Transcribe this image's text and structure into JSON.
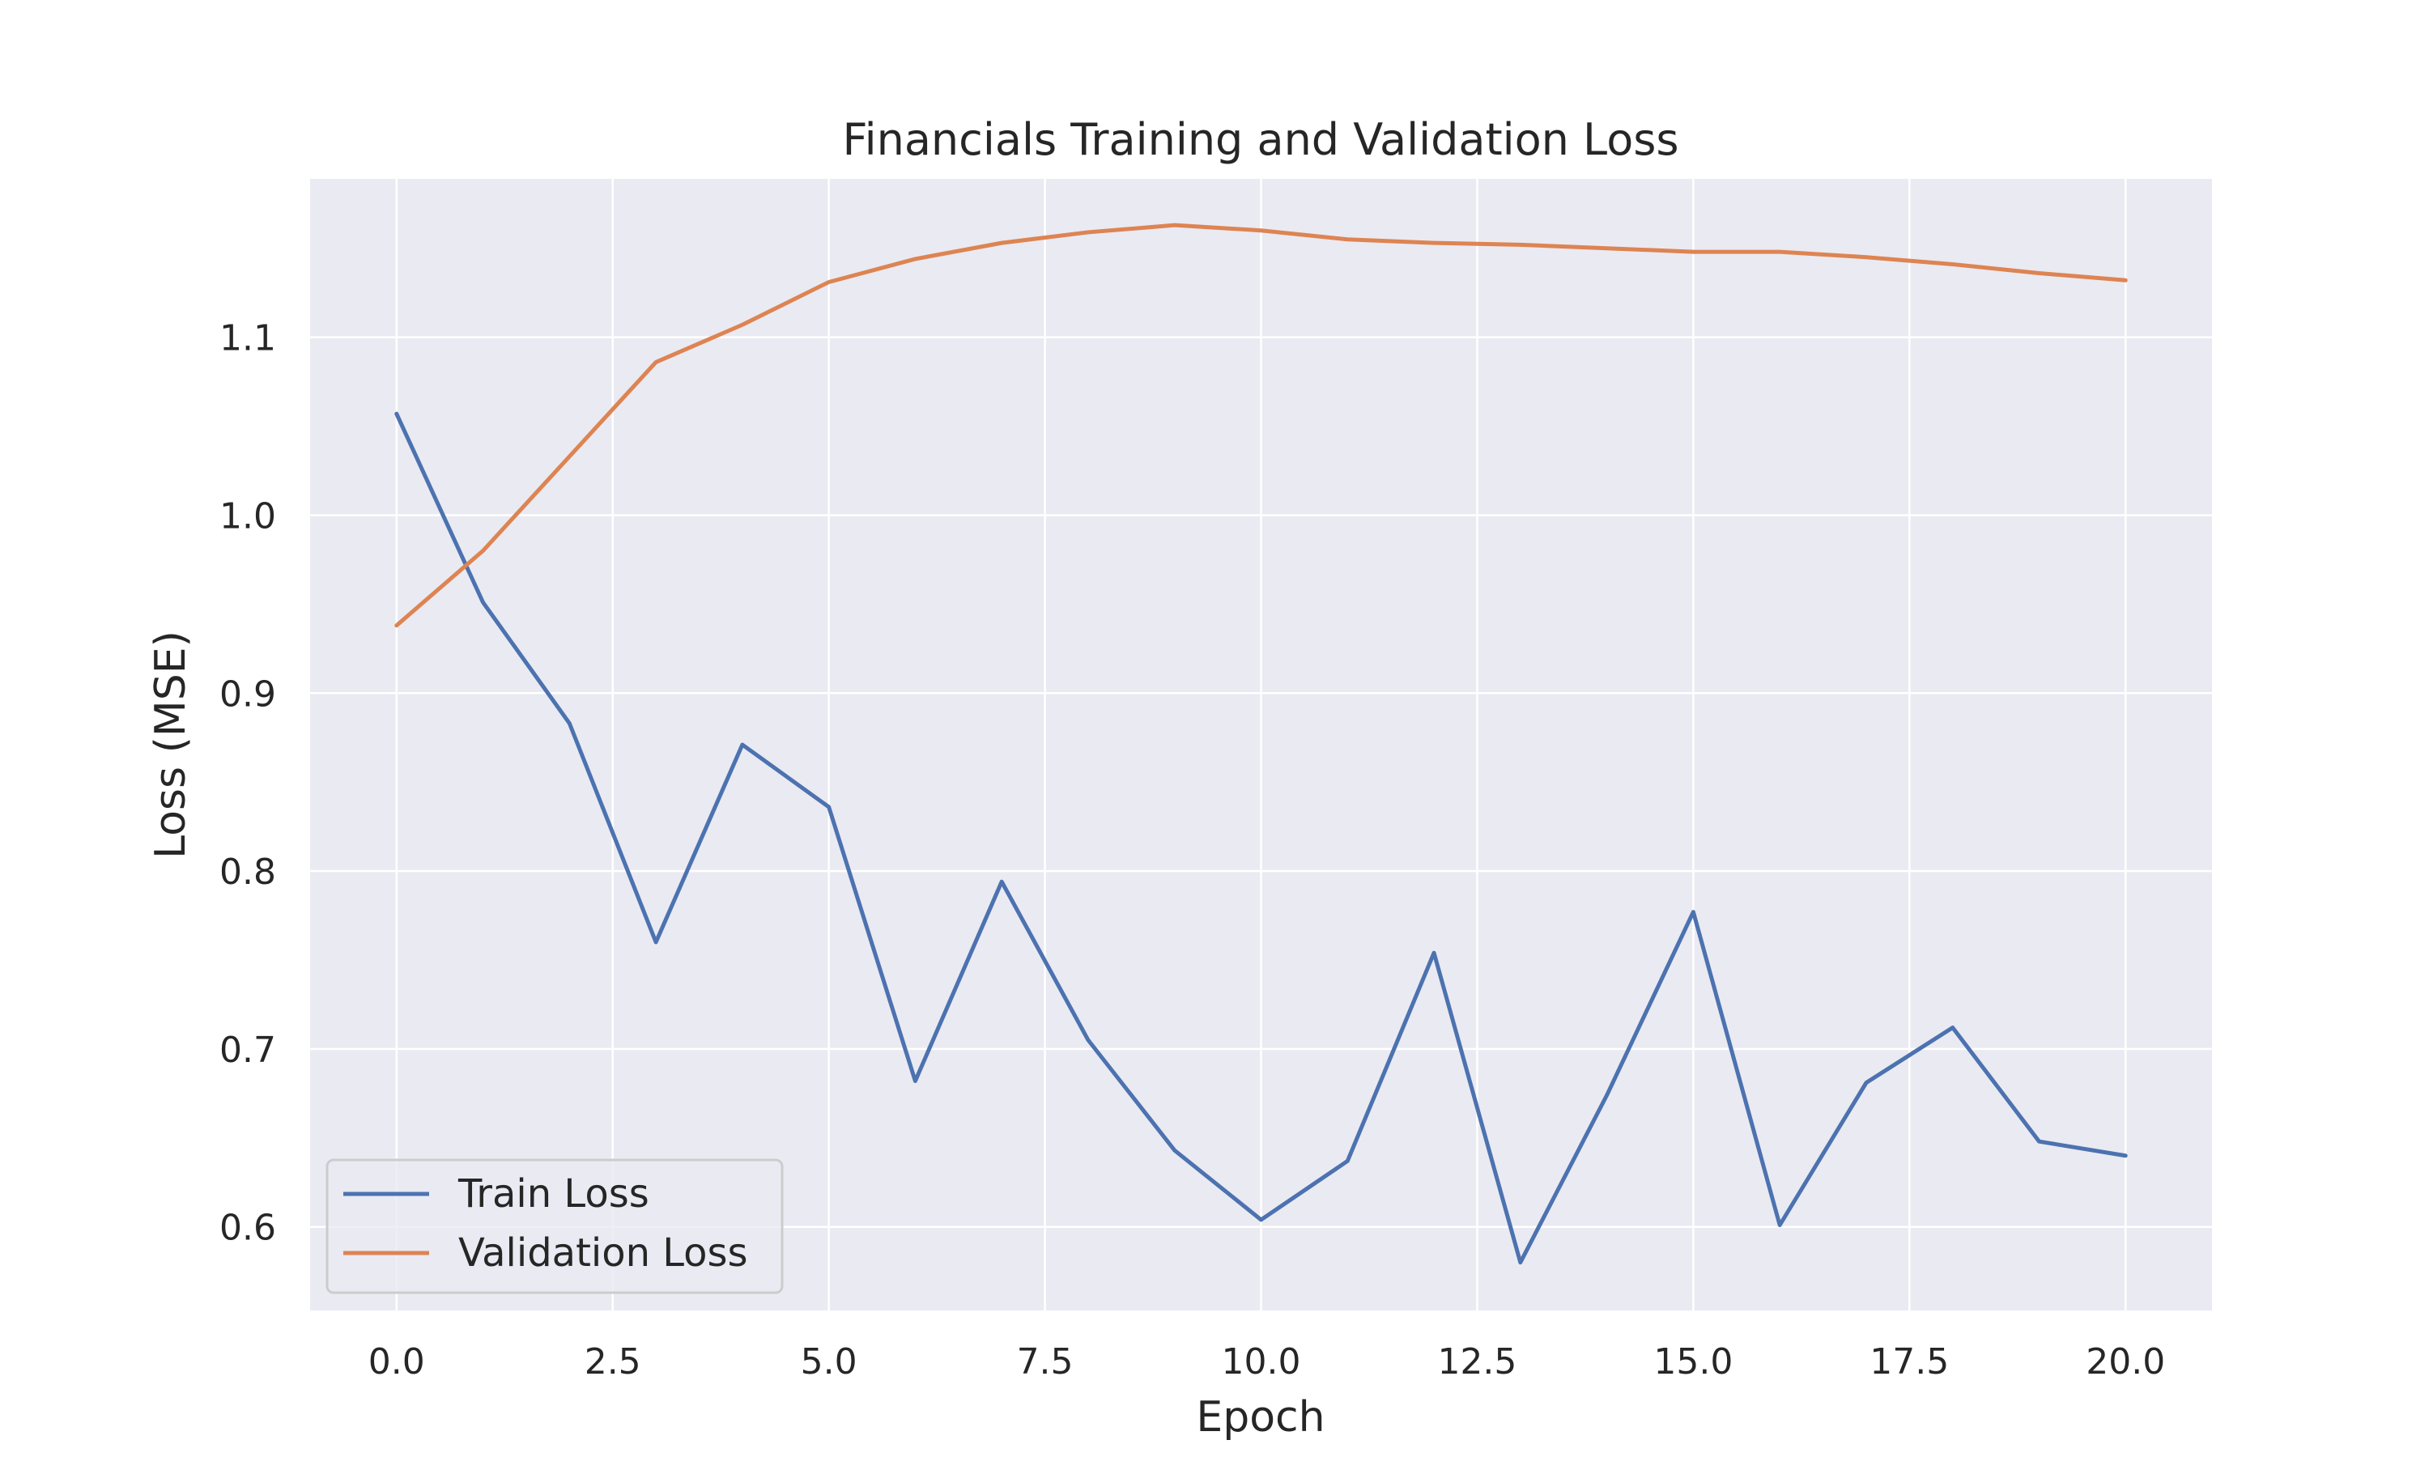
{
  "chart_data": {
    "type": "line",
    "title": "Financials Training and Validation Loss",
    "xlabel": "Epoch",
    "ylabel": "Loss (MSE)",
    "xlim": [
      -1.0,
      21.0
    ],
    "ylim": [
      0.553,
      1.189
    ],
    "xticks": [
      0,
      2.5,
      5,
      7.5,
      10,
      12.5,
      15,
      17.5,
      20
    ],
    "xtick_labels": [
      "0.0",
      "2.5",
      "5.0",
      "7.5",
      "10.0",
      "12.5",
      "15.0",
      "17.5",
      "20.0"
    ],
    "yticks": [
      0.6,
      0.7,
      0.8,
      0.9,
      1.0,
      1.1
    ],
    "ytick_labels": [
      "0.6",
      "0.7",
      "0.8",
      "0.9",
      "1.0",
      "1.1"
    ],
    "grid": true,
    "legend_position": "lower-left",
    "x": [
      0,
      1,
      2,
      3,
      4,
      5,
      6,
      7,
      8,
      9,
      10,
      11,
      12,
      13,
      14,
      15,
      16,
      17,
      18,
      19,
      20
    ],
    "series": [
      {
        "name": "Train Loss",
        "color": "#4c72b0",
        "values": [
          1.057,
          0.951,
          0.883,
          0.76,
          0.871,
          0.836,
          0.682,
          0.794,
          0.705,
          0.643,
          0.604,
          0.637,
          0.754,
          0.58,
          0.674,
          0.777,
          0.601,
          0.681,
          0.712,
          0.648,
          0.64
        ]
      },
      {
        "name": "Validation Loss",
        "color": "#dd8452",
        "values": [
          0.938,
          0.98,
          1.033,
          1.086,
          1.107,
          1.131,
          1.144,
          1.153,
          1.159,
          1.163,
          1.16,
          1.155,
          1.153,
          1.152,
          1.15,
          1.148,
          1.148,
          1.145,
          1.141,
          1.136,
          1.132
        ]
      }
    ],
    "plot_background": "#eaeaf2",
    "grid_color": "#ffffff"
  }
}
